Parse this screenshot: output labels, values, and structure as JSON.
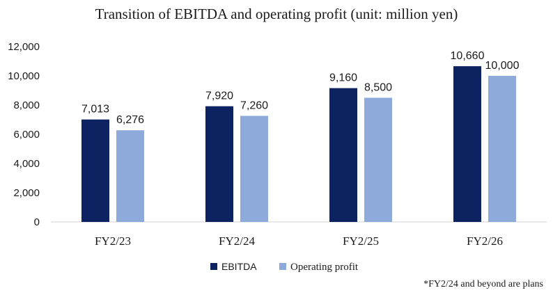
{
  "chart_data": {
    "type": "bar",
    "title": "Transition of EBITDA and operating profit (unit: million yen)",
    "categories": [
      "FY2/23",
      "FY2/24",
      "FY2/25",
      "FY2/26"
    ],
    "series": [
      {
        "name": "EBITDA",
        "color": "#0d2260",
        "values": [
          7013,
          7920,
          9160,
          10660
        ],
        "labels": [
          "7,013",
          "7,920",
          "9,160",
          "10,660"
        ]
      },
      {
        "name": "Operating profit",
        "color": "#8eaadb",
        "values": [
          6276,
          7260,
          8500,
          10000
        ],
        "labels": [
          "6,276",
          "7,260",
          "8,500",
          "10,000"
        ]
      }
    ],
    "yticks": [
      0,
      2000,
      4000,
      6000,
      8000,
      10000,
      12000
    ],
    "ytick_labels": [
      "0",
      "2,000",
      "4,000",
      "6,000",
      "8,000",
      "10,000",
      "12,000"
    ],
    "ylim": [
      0,
      12000
    ],
    "grid": false,
    "legend_position": "bottom-center",
    "note": "*FY2/24 and beyond are plans"
  }
}
